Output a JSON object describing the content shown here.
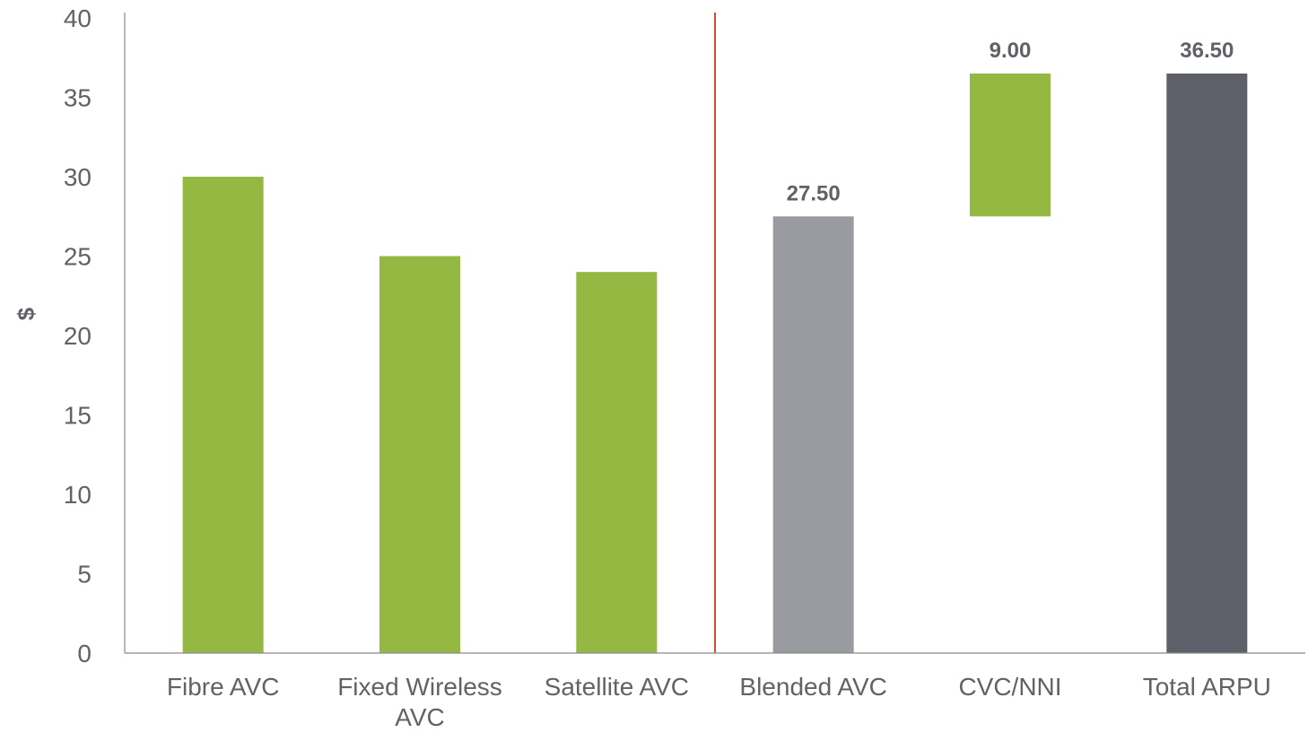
{
  "chart_data": {
    "type": "bar",
    "ylabel": "$",
    "ylim": [
      0,
      40
    ],
    "yticks": [
      0,
      5,
      10,
      15,
      20,
      25,
      30,
      35,
      40
    ],
    "divider_after_category": 2,
    "categories": [
      [
        "Fibre AVC"
      ],
      [
        "Fixed Wireless",
        "AVC"
      ],
      [
        "Satellite AVC"
      ],
      [
        "Blended AVC"
      ],
      [
        "CVC/NNI"
      ],
      [
        "Total ARPU"
      ]
    ],
    "bars": [
      {
        "category": "Fibre AVC",
        "base": 0,
        "value": 30,
        "label": "",
        "color": "#94b841"
      },
      {
        "category": "Fixed Wireless AVC",
        "base": 0,
        "value": 25,
        "label": "",
        "color": "#94b841"
      },
      {
        "category": "Satellite AVC",
        "base": 0,
        "value": 24,
        "label": "",
        "color": "#94b841"
      },
      {
        "category": "Blended AVC",
        "base": 0,
        "value": 27.5,
        "label": "27.50",
        "color": "#9a9ba0"
      },
      {
        "category": "CVC/NNI",
        "base": 27.5,
        "value": 9,
        "label": "9.00",
        "color": "#94b841"
      },
      {
        "category": "Total ARPU",
        "base": 0,
        "value": 36.5,
        "label": "36.50",
        "color": "#5d6068"
      }
    ],
    "colors": {
      "axis": "#8a8a8a",
      "divider": "#d24a2f",
      "text": "#5f6368"
    }
  }
}
